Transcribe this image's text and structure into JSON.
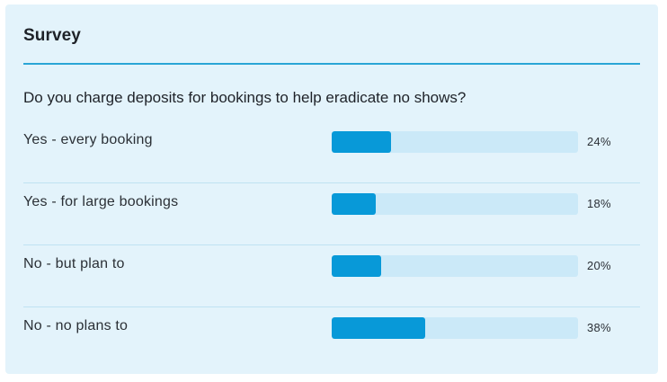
{
  "survey": {
    "title": "Survey",
    "question": "Do you charge deposits for bookings to help eradicate no shows?",
    "options": [
      {
        "label": "Yes - every booking",
        "percent_label": "24%",
        "value": 0.24
      },
      {
        "label": "Yes - for large bookings",
        "percent_label": "18%",
        "value": 0.18
      },
      {
        "label": "No - but plan to",
        "percent_label": "20%",
        "value": 0.2
      },
      {
        "label": "No - no plans to",
        "percent_label": "38%",
        "value": 0.38
      }
    ]
  },
  "colors": {
    "card_background": "#e3f3fb",
    "accent": "#2aa5d6",
    "bar_fill": "#0899d8",
    "bar_track": "#cbe9f8",
    "text": "#1e2228"
  }
}
